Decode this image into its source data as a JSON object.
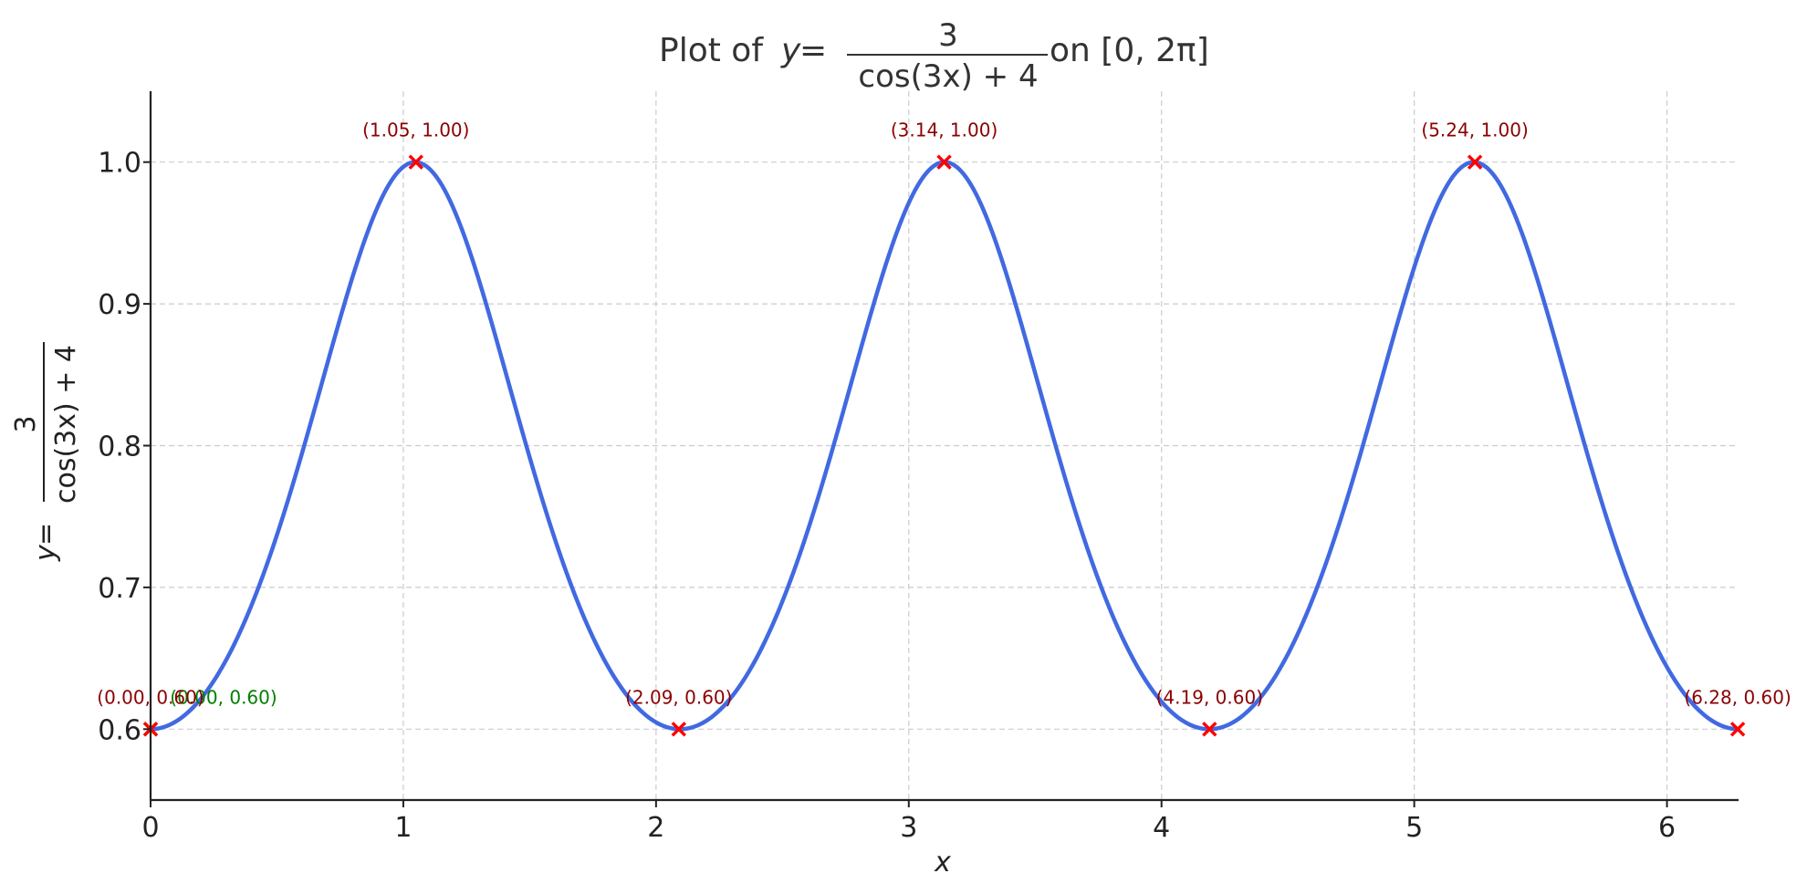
{
  "chart_data": {
    "type": "line",
    "title": {
      "prefix": "Plot of ",
      "var": "y",
      "eq": " = ",
      "numerator": "3",
      "denominator": "cos(3x) + 4",
      "suffix": " on [0, 2π]"
    },
    "xlabel": "x",
    "ylabel": {
      "var": "y",
      "eq": " = ",
      "numerator": "3",
      "denominator": "cos(3x) + 4"
    },
    "xlim": [
      0,
      6.2832
    ],
    "ylim": [
      0.55,
      1.05
    ],
    "xticks": [
      0,
      1,
      2,
      3,
      4,
      5,
      6
    ],
    "xtick_labels": [
      "0",
      "1",
      "2",
      "3",
      "4",
      "5",
      "6"
    ],
    "yticks": [
      0.6,
      0.7,
      0.8,
      0.9,
      1.0
    ],
    "ytick_labels": [
      "0.6",
      "0.7",
      "0.8",
      "0.9",
      "1.0"
    ],
    "grid": true,
    "line_color": "#4169e1",
    "series": [
      {
        "function": "3/(cos(3x)+4)",
        "x_range": [
          0,
          6.2832
        ]
      }
    ],
    "markers": [
      {
        "x": 0.0,
        "y": 0.6,
        "label": "(0.00, 0.60)",
        "color": "#008000"
      },
      {
        "x": 0.0,
        "y": 0.6,
        "label": "(0.00, 0.60)",
        "color": "#ff0000"
      },
      {
        "x": 1.05,
        "y": 1.0,
        "label": "(1.05, 1.00)",
        "color": "#ff0000"
      },
      {
        "x": 2.09,
        "y": 0.6,
        "label": "(2.09, 0.60)",
        "color": "#ff0000"
      },
      {
        "x": 3.14,
        "y": 1.0,
        "label": "(3.14, 1.00)",
        "color": "#ff0000"
      },
      {
        "x": 4.19,
        "y": 0.6,
        "label": "(4.19, 0.60)",
        "color": "#ff0000"
      },
      {
        "x": 5.24,
        "y": 1.0,
        "label": "(5.24, 1.00)",
        "color": "#ff0000"
      },
      {
        "x": 6.28,
        "y": 0.6,
        "label": "(6.28, 0.60)",
        "color": "#ff0000"
      }
    ]
  }
}
